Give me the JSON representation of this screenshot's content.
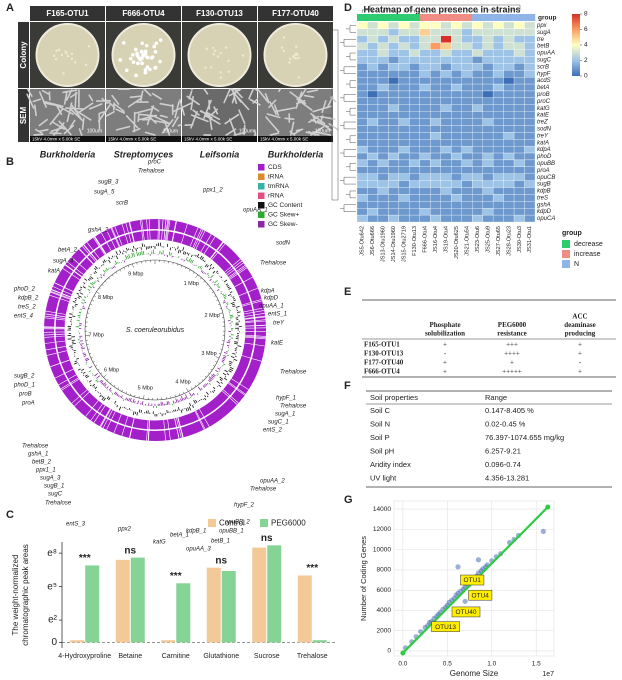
{
  "panels": [
    "A",
    "B",
    "C",
    "D",
    "E",
    "F",
    "G"
  ],
  "panel_a": {
    "strains": [
      "F165-OTU1",
      "F666-OTU4",
      "F130-OTU13",
      "F177-OTU40"
    ],
    "rows": [
      "Colony",
      "SEM"
    ],
    "scale_bar": "100um",
    "sem_info": "15kV 4.0mm x 5.00k SE",
    "genera": [
      "Burkholderia",
      "Streptomyces",
      "Leifsonia",
      "Burkholderia"
    ]
  },
  "panel_b": {
    "organism": "S. coeruleorubidus",
    "ring_labels": [
      "1 Mbp",
      "2 Mbp",
      "3 Mbp",
      "4 Mbp",
      "5 Mbp",
      "6 Mbp",
      "7 Mbp",
      "8 Mbp",
      "9 Mbp"
    ],
    "genes": [
      "sugB_3",
      "sugA_5",
      "scrB",
      "proC",
      "Trehalose",
      "ppx1_2",
      "opuAA_1",
      "gshA_2",
      "sodN",
      "betA_2",
      "Trehalose",
      "sugA_4",
      "katA",
      "kdpA",
      "kdpD",
      "opuAA_1",
      "entS_1",
      "treY",
      "phoD_2",
      "kdpB_2",
      "treS_2",
      "entS_4",
      "katE",
      "Trehalose",
      "hypF_1",
      "Trehalose",
      "sugA_1",
      "sugC_1",
      "entS_2",
      "sugB_2",
      "phoD_1",
      "proB",
      "proA",
      "Trehalose",
      "gshA_1",
      "betB_2",
      "ppx1_1",
      "sugA_3",
      "sugB_1",
      "sugC",
      "Trehalose",
      "opuAA_2",
      "Trehalose",
      "hypF_2",
      "opuBB_2",
      "opuBB_1",
      "betB_1",
      "kdpB_1",
      "opuAA_3",
      "betA_1",
      "katG",
      "ppx2",
      "entS_3"
    ],
    "legend": [
      {
        "name": "CDS",
        "color": "#a21fc9"
      },
      {
        "name": "tRNA",
        "color": "#d98c2b"
      },
      {
        "name": "tmRNA",
        "color": "#35b2a6"
      },
      {
        "name": "rRNA",
        "color": "#e0507e"
      },
      {
        "name": "GC Content",
        "color": "#111111"
      },
      {
        "name": "GC Skew+",
        "color": "#2ea82e"
      },
      {
        "name": "GC Skew-",
        "color": "#8a27a2"
      }
    ]
  },
  "chart_data": [
    {
      "type": "bar",
      "ylabel": [
        "The weight-normalized",
        "chromatographic peak areas"
      ],
      "categories": [
        "4-Hydroxyproline",
        "Betaine",
        "Carnitine",
        "Glutathione",
        "Sucrose",
        "Trehalose"
      ],
      "series": [
        {
          "name": "Control",
          "color": "#f3c998",
          "values": [
            0.2,
            7.4,
            0.2,
            6.7,
            8.5,
            6.0
          ]
        },
        {
          "name": "PEG6000",
          "color": "#86d396",
          "values": [
            6.9,
            7.6,
            5.3,
            6.4,
            8.7,
            0.2
          ]
        }
      ],
      "significance": [
        "***",
        "ns",
        "***",
        "ns",
        "ns",
        "***"
      ],
      "ylim": [
        -0.5,
        9
      ],
      "yticks": [
        0,
        {
          "value": 2,
          "label": "e²"
        },
        {
          "value": 5,
          "label": "e⁵"
        },
        {
          "value": 8,
          "label": "e⁸"
        }
      ],
      "baseline_dashed": true
    },
    {
      "type": "heatmap",
      "title": "Heatmap of gene presence in strains",
      "rows": [
        "ppx",
        "sugA",
        "tre",
        "betB",
        "opuAA",
        "sugC",
        "scrB",
        "hypF",
        "acdS",
        "betA",
        "proB",
        "proC",
        "katG",
        "katE",
        "treZ",
        "sodN",
        "treY",
        "katA",
        "kdpA",
        "phoD",
        "opuBB",
        "proA",
        "opuCB",
        "sugB",
        "kdpB",
        "treS",
        "gshA",
        "kdpD",
        "opuCA"
      ],
      "columns": [
        "JS5-Otu642",
        "JS6-Otu666",
        "JS13-Otu1960",
        "JS14-Otu1960",
        "JS15-Otu2719",
        "F130-Otu13",
        "F666-Otu4",
        "JS16-Otu4",
        "JS19-Otu4",
        "JS20-Otu625",
        "JS21-Otu54",
        "JS23-Otu6",
        "JS25-Otu9",
        "JS27-Otu65",
        "JS28-Otu23",
        "JS30-Otu3",
        "JS31-Otu1"
      ],
      "column_groups": [
        "decrease",
        "decrease",
        "decrease",
        "decrease",
        "decrease",
        "decrease",
        "increase",
        "increase",
        "increase",
        "increase",
        "increase",
        "N",
        "N",
        "N",
        "N",
        "N",
        "N"
      ],
      "values": [
        [
          4,
          3,
          4,
          3,
          4,
          3,
          4,
          4,
          3,
          4,
          3,
          4,
          3,
          4,
          3,
          4,
          3
        ],
        [
          3,
          3,
          3,
          2,
          3,
          3,
          5,
          3,
          3,
          3,
          2,
          3,
          3,
          3,
          3,
          3,
          3
        ],
        [
          2,
          3,
          2,
          3,
          2,
          2,
          3,
          3,
          8,
          3,
          2,
          2,
          3,
          2,
          3,
          2,
          2
        ],
        [
          3,
          2,
          3,
          2,
          3,
          2,
          3,
          6,
          5,
          3,
          3,
          2,
          3,
          2,
          3,
          3,
          2
        ],
        [
          2,
          2,
          3,
          2,
          2,
          3,
          2,
          2,
          3,
          2,
          2,
          3,
          2,
          2,
          2,
          3,
          2
        ],
        [
          2,
          2,
          2,
          1,
          2,
          2,
          2,
          2,
          2,
          2,
          2,
          1,
          2,
          2,
          2,
          2,
          2
        ],
        [
          1,
          2,
          1,
          2,
          2,
          1,
          2,
          2,
          1,
          2,
          2,
          2,
          1,
          2,
          2,
          1,
          2
        ],
        [
          1,
          1,
          1,
          1,
          1,
          1,
          2,
          1,
          2,
          1,
          2,
          1,
          1,
          2,
          1,
          1,
          2
        ],
        [
          1,
          1,
          1,
          0,
          1,
          1,
          1,
          1,
          1,
          1,
          1,
          1,
          1,
          1,
          0,
          1,
          1
        ],
        [
          1,
          1,
          2,
          1,
          1,
          1,
          2,
          1,
          1,
          2,
          1,
          1,
          1,
          2,
          1,
          1,
          1
        ],
        [
          1,
          0,
          1,
          1,
          1,
          1,
          1,
          1,
          1,
          1,
          1,
          1,
          0,
          1,
          1,
          1,
          1
        ],
        [
          1,
          1,
          1,
          1,
          1,
          1,
          1,
          1,
          1,
          1,
          1,
          1,
          1,
          1,
          1,
          1,
          1
        ],
        [
          1,
          1,
          1,
          2,
          1,
          1,
          1,
          1,
          2,
          1,
          1,
          2,
          1,
          1,
          1,
          1,
          1
        ],
        [
          1,
          1,
          1,
          1,
          1,
          1,
          1,
          1,
          1,
          1,
          1,
          1,
          1,
          1,
          1,
          1,
          1
        ],
        [
          1,
          2,
          1,
          1,
          2,
          1,
          1,
          2,
          1,
          1,
          1,
          1,
          2,
          1,
          1,
          1,
          1
        ],
        [
          1,
          1,
          1,
          1,
          1,
          1,
          1,
          1,
          1,
          1,
          1,
          1,
          1,
          1,
          1,
          1,
          1
        ],
        [
          1,
          1,
          1,
          1,
          1,
          1,
          1,
          2,
          1,
          1,
          1,
          1,
          1,
          1,
          2,
          1,
          1
        ],
        [
          1,
          1,
          1,
          1,
          1,
          1,
          1,
          1,
          1,
          1,
          1,
          1,
          1,
          1,
          1,
          1,
          1
        ],
        [
          2,
          1,
          1,
          1,
          2,
          1,
          1,
          1,
          2,
          1,
          2,
          1,
          1,
          1,
          1,
          1,
          2
        ],
        [
          1,
          2,
          1,
          2,
          1,
          1,
          2,
          1,
          1,
          2,
          1,
          1,
          2,
          1,
          2,
          1,
          1
        ],
        [
          2,
          1,
          2,
          1,
          1,
          2,
          1,
          2,
          1,
          1,
          2,
          1,
          2,
          1,
          1,
          2,
          1
        ],
        [
          1,
          1,
          1,
          1,
          1,
          1,
          1,
          1,
          1,
          1,
          1,
          1,
          1,
          1,
          1,
          1,
          1
        ],
        [
          2,
          2,
          1,
          2,
          2,
          1,
          2,
          2,
          2,
          1,
          2,
          2,
          1,
          2,
          2,
          2,
          1
        ],
        [
          2,
          2,
          2,
          2,
          1,
          2,
          2,
          2,
          2,
          2,
          1,
          2,
          2,
          2,
          2,
          1,
          2
        ],
        [
          1,
          1,
          2,
          1,
          1,
          1,
          1,
          1,
          2,
          1,
          1,
          1,
          2,
          1,
          1,
          1,
          1
        ],
        [
          2,
          1,
          1,
          1,
          2,
          1,
          1,
          1,
          1,
          2,
          1,
          1,
          1,
          2,
          1,
          1,
          1
        ],
        [
          1,
          1,
          1,
          1,
          1,
          1,
          1,
          1,
          1,
          1,
          1,
          1,
          1,
          1,
          1,
          1,
          1
        ],
        [
          1,
          2,
          1,
          1,
          1,
          1,
          2,
          1,
          1,
          1,
          1,
          1,
          2,
          1,
          1,
          1,
          1
        ],
        [
          2,
          1,
          1,
          2,
          1,
          1,
          1,
          2,
          1,
          1,
          1,
          2,
          1,
          1,
          1,
          2,
          1
        ]
      ],
      "zlim": [
        0,
        8
      ],
      "zticks": [
        0,
        2,
        4,
        6,
        8
      ],
      "colorscale": [
        "#3c6fb6",
        "#9dc3e6",
        "#ffffbf",
        "#f99d62",
        "#d73027"
      ],
      "group_title": "group",
      "groups": [
        {
          "name": "decrease",
          "color": "#2ecc71"
        },
        {
          "name": "increase",
          "color": "#f08c84"
        },
        {
          "name": "N",
          "color": "#8fb4e8"
        }
      ]
    },
    {
      "type": "scatter",
      "xlabel": "Genome Size",
      "x_offset": "1e7",
      "ylabel": "Number of Coding Genes",
      "x": [
        0.1,
        0.15,
        0.2,
        0.25,
        0.28,
        0.3,
        0.32,
        0.35,
        0.38,
        0.4,
        0.42,
        0.45,
        0.48,
        0.5,
        0.52,
        0.55,
        0.58,
        0.6,
        0.62,
        0.65,
        0.68,
        0.7,
        0.72,
        0.75,
        0.78,
        0.8,
        0.83,
        0.85,
        0.88,
        0.9,
        0.93,
        0.95,
        1.0,
        1.05,
        1.1,
        1.2,
        1.3,
        0.62,
        0.7,
        0.85,
        1.25,
        1.58,
        0.03
      ],
      "y": [
        900,
        1400,
        1900,
        2300,
        2500,
        2800,
        2900,
        3200,
        3400,
        3600,
        3800,
        4100,
        4300,
        4500,
        4800,
        5000,
        5200,
        5500,
        5700,
        5900,
        6100,
        6300,
        6600,
        6800,
        7000,
        7200,
        7400,
        7700,
        7900,
        8100,
        8300,
        8500,
        8900,
        9300,
        9600,
        10700,
        11400,
        8300,
        4900,
        9000,
        11000,
        11800,
        300
      ],
      "color": "#4a6eb0",
      "xlim": [
        -0.1,
        1.7
      ],
      "ylim": [
        -500,
        14800
      ],
      "xticks": [
        {
          "value": 0,
          "label": "0.0"
        },
        0.5,
        {
          "value": 1,
          "label": "1.0"
        },
        1.5
      ],
      "yticks": [
        0,
        2000,
        4000,
        6000,
        8000,
        10000,
        12000,
        14000
      ],
      "grid": true,
      "fit": {
        "x": [
          0,
          1.63
        ],
        "y": [
          -200,
          14200
        ],
        "color": "#2ecc40"
      },
      "annotations": [
        {
          "text": "OTU1",
          "x": 0.78,
          "y": 7000
        },
        {
          "text": "OTU4",
          "x": 0.87,
          "y": 5500
        },
        {
          "text": "OTU40",
          "x": 0.71,
          "y": 3850
        },
        {
          "text": "OTU13",
          "x": 0.48,
          "y": 2400
        }
      ]
    }
  ],
  "table_e": {
    "headers": [
      [
        "Phosphate",
        "solubilization"
      ],
      [
        "PEG6000",
        "resistance"
      ],
      [
        "ACC",
        "deaminase",
        "producing"
      ]
    ],
    "rows": [
      [
        "F165-OTU1",
        "+",
        "+++",
        "+"
      ],
      [
        "F130-OTU13",
        "-",
        "++++",
        "+"
      ],
      [
        "F177-OTU40",
        "+",
        "+",
        "-"
      ],
      [
        "F666-OTU4",
        "+",
        "+++++",
        "+"
      ]
    ]
  },
  "table_f": {
    "headers": [
      "Soil properties",
      "Range"
    ],
    "rows": [
      [
        "Soil C",
        "0.147-8.405 %"
      ],
      [
        "Soil N",
        "0.02-0.45 %"
      ],
      [
        "Soil P",
        "76.397-1074.655 mg/kg"
      ],
      [
        "Soil pH",
        "6.257-9.21"
      ],
      [
        "Aridity index",
        "0.096-0.74"
      ],
      [
        "UV light",
        "4.356-13.281"
      ]
    ]
  }
}
